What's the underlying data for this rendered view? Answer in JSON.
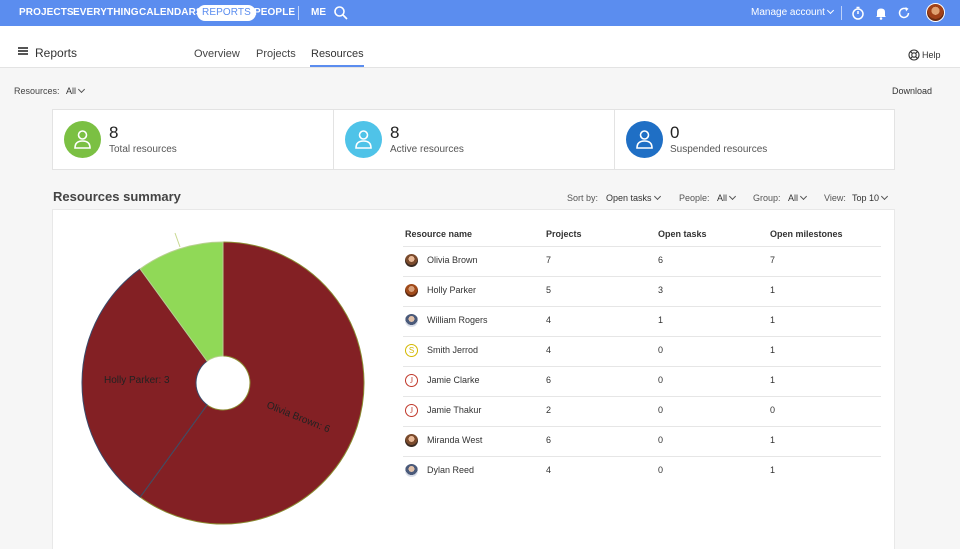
{
  "topnav": {
    "items": [
      "PROJECTS",
      "EVERYTHING",
      "CALENDARS",
      "REPORTS",
      "PEOPLE",
      "ME"
    ],
    "active": "REPORTS",
    "manage_account": "Manage account"
  },
  "subheader": {
    "title": "Reports",
    "tabs": [
      "Overview",
      "Projects",
      "Resources"
    ],
    "active_tab": "Resources",
    "help": "Help"
  },
  "filters": {
    "resources_label": "Resources:",
    "resources_value": "All",
    "download": "Download"
  },
  "stats": [
    {
      "number": "8",
      "label": "Total resources",
      "color": "#7bc043"
    },
    {
      "number": "8",
      "label": "Active resources",
      "color": "#4fc3e8"
    },
    {
      "number": "0",
      "label": "Suspended resources",
      "color": "#1f6fc5"
    }
  ],
  "summary": {
    "title": "Resources summary",
    "sort_label": "Sort by:",
    "sort_value": "Open tasks",
    "people_label": "People:",
    "people_value": "All",
    "group_label": "Group:",
    "group_value": "All",
    "view_label": "View:",
    "view_value": "Top 10"
  },
  "table": {
    "headers": [
      "Resource name",
      "Projects",
      "Open tasks",
      "Open milestones"
    ],
    "rows": [
      {
        "name": "Olivia Brown",
        "projects": "7",
        "open_tasks": "6",
        "open_milestones": "7",
        "avatar": "photo",
        "initial": ""
      },
      {
        "name": "Holly Parker",
        "projects": "5",
        "open_tasks": "3",
        "open_milestones": "1",
        "avatar": "photo2",
        "initial": ""
      },
      {
        "name": "William Rogers",
        "projects": "4",
        "open_tasks": "1",
        "open_milestones": "1",
        "avatar": "photo3",
        "initial": ""
      },
      {
        "name": "Smith Jerrod",
        "projects": "4",
        "open_tasks": "0",
        "open_milestones": "1",
        "avatar": "letter s",
        "initial": "S"
      },
      {
        "name": "Jamie Clarke",
        "projects": "6",
        "open_tasks": "0",
        "open_milestones": "1",
        "avatar": "letter",
        "initial": "J"
      },
      {
        "name": "Jamie Thakur",
        "projects": "2",
        "open_tasks": "0",
        "open_milestones": "0",
        "avatar": "letter",
        "initial": "J"
      },
      {
        "name": "Miranda West",
        "projects": "6",
        "open_tasks": "0",
        "open_milestones": "1",
        "avatar": "photo",
        "initial": ""
      },
      {
        "name": "Dylan Reed",
        "projects": "4",
        "open_tasks": "0",
        "open_milestones": "1",
        "avatar": "photo3",
        "initial": ""
      }
    ]
  },
  "chart_data": {
    "type": "pie",
    "series": [
      {
        "name": "Olivia Brown",
        "value": 6,
        "label": "Olivia Brown: 6",
        "color": "#832024"
      },
      {
        "name": "Holly Parker",
        "value": 3,
        "label": "Holly Parker: 3",
        "color": "#832024"
      },
      {
        "name": "William Rogers",
        "value": 1,
        "label": "",
        "color": "#90d957"
      }
    ]
  }
}
